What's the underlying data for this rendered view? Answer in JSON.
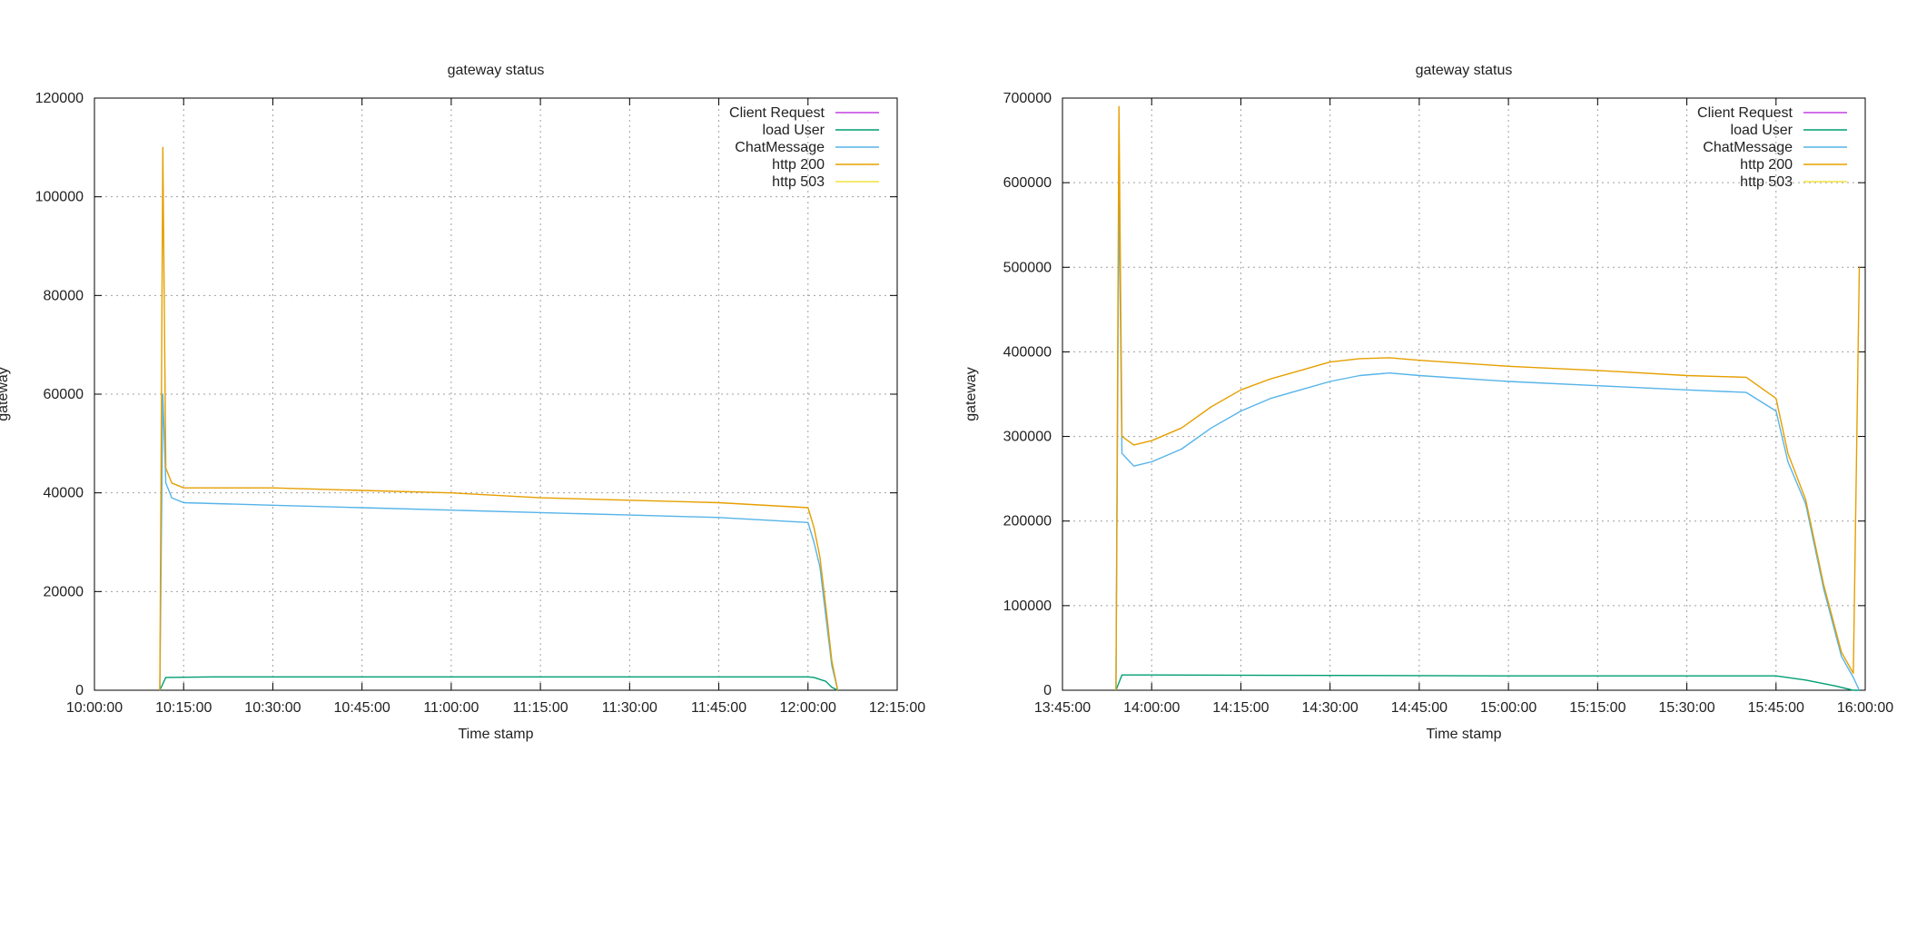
{
  "chart_data": [
    {
      "type": "line",
      "title": "gateway status",
      "xlabel": "Time stamp",
      "ylabel": "gateway",
      "grid": true,
      "legend_position": "top-right",
      "x_range": [
        "10:00:00",
        "12:15:00"
      ],
      "x_ticks": [
        "10:00:00",
        "10:15:00",
        "10:30:00",
        "10:45:00",
        "11:00:00",
        "11:15:00",
        "11:30:00",
        "11:45:00",
        "12:00:00",
        "12:15:00"
      ],
      "ylim": [
        0,
        120000
      ],
      "y_ticks": [
        0,
        20000,
        40000,
        60000,
        80000,
        100000,
        120000
      ],
      "series": [
        {
          "name": "Client Request",
          "color": "#c040e0",
          "x": [],
          "y": []
        },
        {
          "name": "load User",
          "color": "#009e73",
          "x": [
            "10:11:00",
            "10:12:00",
            "10:20:00",
            "10:40:00",
            "11:00:00",
            "11:20:00",
            "11:40:00",
            "12:00:00",
            "12:01:00",
            "12:03:00",
            "12:04:00",
            "12:05:00"
          ],
          "y": [
            0,
            2600,
            2700,
            2700,
            2700,
            2700,
            2700,
            2700,
            2600,
            1800,
            600,
            0
          ]
        },
        {
          "name": "ChatMessage",
          "color": "#56b4e9",
          "x": [
            "10:11:00",
            "10:11:30",
            "10:12:00",
            "10:13:00",
            "10:15:00",
            "10:30:00",
            "10:45:00",
            "11:00:00",
            "11:15:00",
            "11:30:00",
            "11:45:00",
            "12:00:00",
            "12:01:00",
            "12:02:00",
            "12:03:00",
            "12:04:00",
            "12:05:00"
          ],
          "y": [
            0,
            60000,
            42000,
            39000,
            38000,
            37500,
            37000,
            36500,
            36000,
            35500,
            35000,
            34000,
            30000,
            25000,
            15000,
            5000,
            0
          ]
        },
        {
          "name": "http 200",
          "color": "#e69f00",
          "x": [
            "10:11:00",
            "10:11:30",
            "10:12:00",
            "10:13:00",
            "10:15:00",
            "10:30:00",
            "10:45:00",
            "11:00:00",
            "11:15:00",
            "11:30:00",
            "11:45:00",
            "12:00:00",
            "12:01:00",
            "12:02:00",
            "12:03:00",
            "12:04:00",
            "12:05:00"
          ],
          "y": [
            0,
            110000,
            45000,
            42000,
            41000,
            41000,
            40500,
            40000,
            39000,
            38500,
            38000,
            37000,
            33000,
            27000,
            17000,
            6000,
            0
          ]
        },
        {
          "name": "http 503",
          "color": "#f0e442",
          "x": [],
          "y": []
        }
      ]
    },
    {
      "type": "line",
      "title": "gateway status",
      "xlabel": "Time stamp",
      "ylabel": "gateway",
      "grid": true,
      "legend_position": "top-right",
      "x_range": [
        "13:45:00",
        "16:00:00"
      ],
      "x_ticks": [
        "13:45:00",
        "14:00:00",
        "14:15:00",
        "14:30:00",
        "14:45:00",
        "15:00:00",
        "15:15:00",
        "15:30:00",
        "15:45:00",
        "16:00:00"
      ],
      "ylim": [
        0,
        700000
      ],
      "y_ticks": [
        0,
        100000,
        200000,
        300000,
        400000,
        500000,
        600000,
        700000
      ],
      "series": [
        {
          "name": "Client Request",
          "color": "#c040e0",
          "x": [],
          "y": []
        },
        {
          "name": "load User",
          "color": "#009e73",
          "x": [
            "13:54:00",
            "13:55:00",
            "14:00:00",
            "14:30:00",
            "15:00:00",
            "15:30:00",
            "15:45:00",
            "15:50:00",
            "15:55:00",
            "15:58:00",
            "15:59:00"
          ],
          "y": [
            0,
            18000,
            18000,
            17500,
            17000,
            17000,
            17000,
            12000,
            5000,
            0,
            0
          ]
        },
        {
          "name": "ChatMessage",
          "color": "#56b4e9",
          "x": [
            "13:54:00",
            "13:54:30",
            "13:55:00",
            "13:57:00",
            "14:00:00",
            "14:05:00",
            "14:10:00",
            "14:15:00",
            "14:20:00",
            "14:25:00",
            "14:30:00",
            "14:35:00",
            "14:40:00",
            "14:45:00",
            "15:00:00",
            "15:15:00",
            "15:30:00",
            "15:40:00",
            "15:45:00",
            "15:47:00",
            "15:50:00",
            "15:53:00",
            "15:56:00",
            "15:58:00",
            "15:59:00"
          ],
          "y": [
            0,
            600000,
            280000,
            265000,
            270000,
            285000,
            310000,
            330000,
            345000,
            355000,
            365000,
            372000,
            375000,
            372000,
            365000,
            360000,
            355000,
            352000,
            330000,
            270000,
            220000,
            120000,
            40000,
            15000,
            0
          ]
        },
        {
          "name": "http 200",
          "color": "#e69f00",
          "x": [
            "13:54:00",
            "13:54:30",
            "13:55:00",
            "13:57:00",
            "14:00:00",
            "14:05:00",
            "14:10:00",
            "14:15:00",
            "14:20:00",
            "14:25:00",
            "14:30:00",
            "14:35:00",
            "14:40:00",
            "14:45:00",
            "15:00:00",
            "15:15:00",
            "15:30:00",
            "15:40:00",
            "15:45:00",
            "15:47:00",
            "15:50:00",
            "15:53:00",
            "15:56:00",
            "15:58:00",
            "15:59:00"
          ],
          "y": [
            0,
            690000,
            300000,
            290000,
            295000,
            310000,
            335000,
            355000,
            368000,
            378000,
            388000,
            392000,
            393000,
            390000,
            383000,
            378000,
            372000,
            370000,
            345000,
            280000,
            225000,
            125000,
            45000,
            20000,
            500000
          ]
        },
        {
          "name": "http 503",
          "color": "#f0e442",
          "x": [],
          "y": []
        }
      ]
    }
  ]
}
